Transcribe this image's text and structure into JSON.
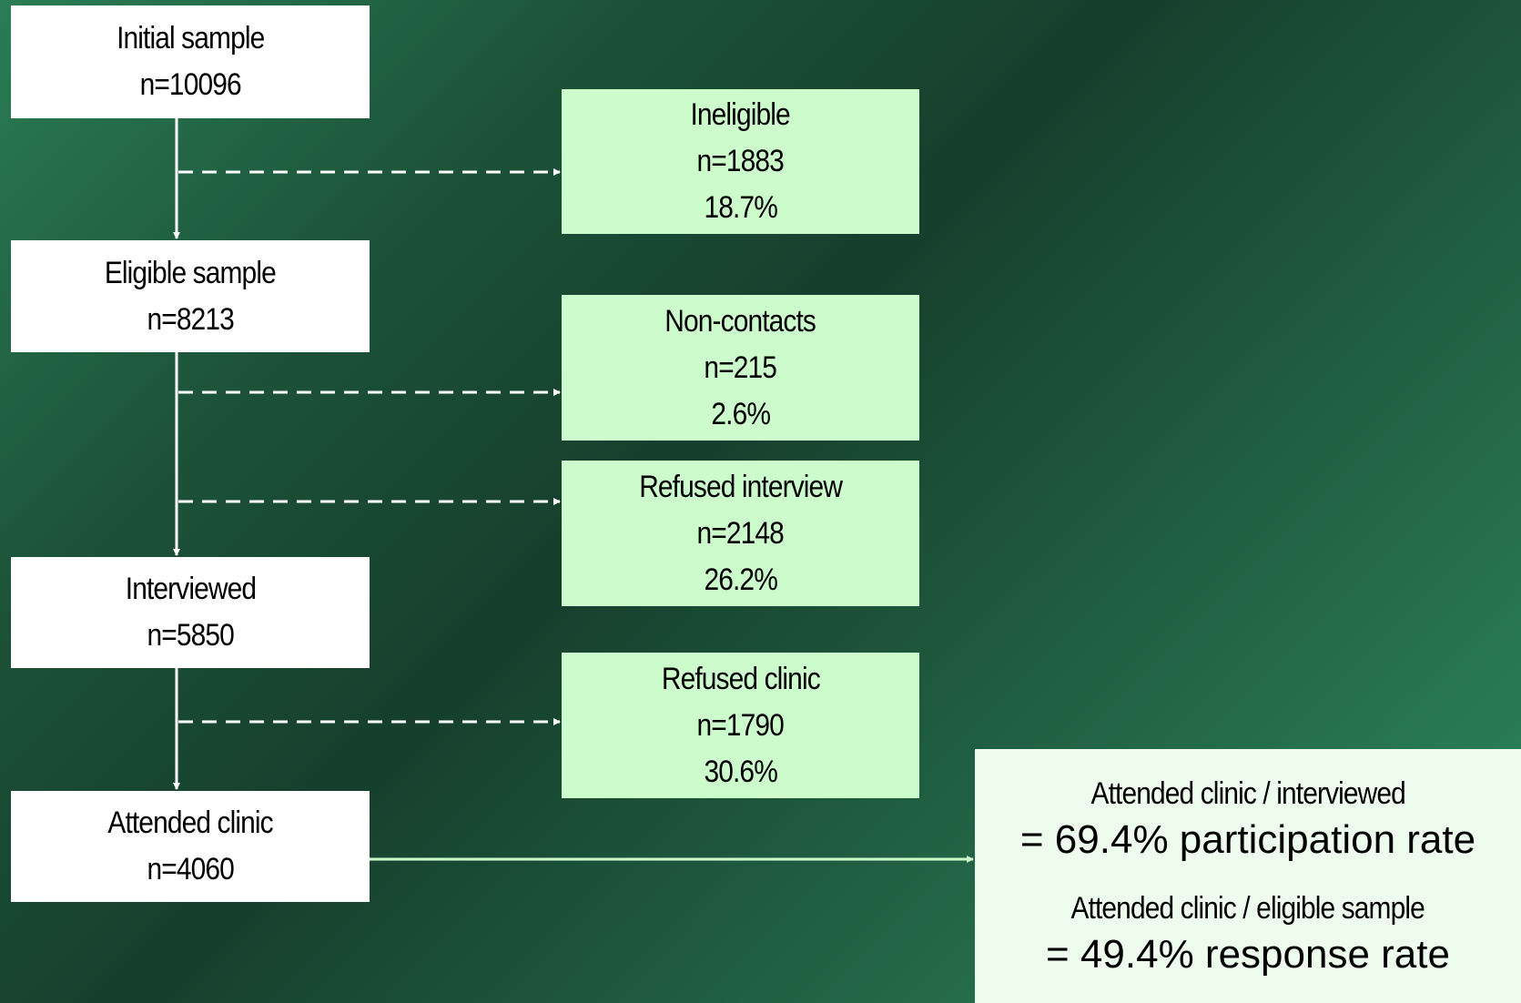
{
  "nodes": [
    {
      "label": "Initial sample",
      "n": "n=10096"
    },
    {
      "label": "Eligible sample",
      "n": "n=8213"
    },
    {
      "label": "Interviewed",
      "n": "n=5850"
    },
    {
      "label": "Attended clinic",
      "n": "n=4060"
    }
  ],
  "exclusions": [
    {
      "label": "Ineligible",
      "n": "n=1883",
      "pct": "18.7%"
    },
    {
      "label": "Non-contacts",
      "n": "n=215",
      "pct": "2.6%"
    },
    {
      "label": "Refused interview",
      "n": "n=2148",
      "pct": "26.2%"
    },
    {
      "label": "Refused clinic",
      "n": "n=1790",
      "pct": "30.6%"
    }
  ],
  "results": [
    {
      "ratio": "Attended clinic / interviewed",
      "rate": "= 69.4% participation rate"
    },
    {
      "ratio": "Attended clinic / eligible sample",
      "rate": "= 49.4% response rate"
    }
  ]
}
